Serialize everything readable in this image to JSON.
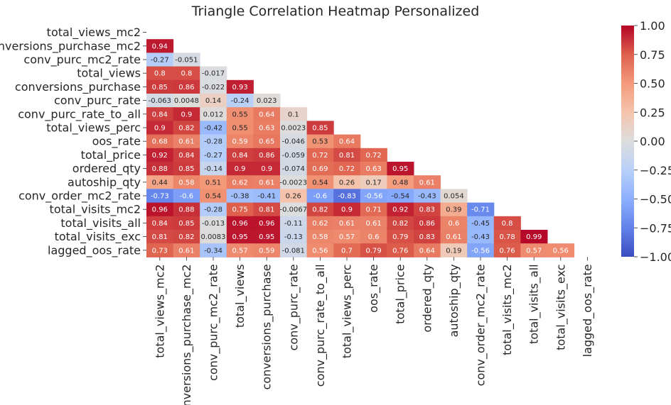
{
  "chart_data": {
    "type": "heatmap",
    "title": "Triangle Correlation Heatmap Personalized",
    "variables": [
      "total_views_mc2",
      "conversions_purchase_mc2",
      "conv_purc_mc2_rate",
      "total_views",
      "conversions_purchase",
      "conv_purc_rate",
      "conv_purc_rate_to_all",
      "total_views_perc",
      "oos_rate",
      "total_price",
      "ordered_qty",
      "autoship_qty",
      "conv_order_mc2_rate",
      "total_visits_mc2",
      "total_visits_all",
      "total_visits_exc",
      "lagged_oos_rate"
    ],
    "values": [
      [],
      [
        "0.94"
      ],
      [
        "-0.27",
        "-0.051"
      ],
      [
        "0.8",
        "0.8",
        "-0.017"
      ],
      [
        "0.85",
        "0.86",
        "-0.022",
        "0.93"
      ],
      [
        "-0.063",
        "0.0048",
        "0.14",
        "-0.24",
        "0.023"
      ],
      [
        "0.84",
        "0.9",
        "0.012",
        "0.55",
        "0.64",
        "0.1"
      ],
      [
        "0.9",
        "0.82",
        "-0.42",
        "0.55",
        "0.63",
        "0.0023",
        "0.85"
      ],
      [
        "0.68",
        "0.61",
        "-0.28",
        "0.59",
        "0.65",
        "-0.046",
        "0.53",
        "0.64"
      ],
      [
        "0.92",
        "0.84",
        "-0.27",
        "0.84",
        "0.86",
        "-0.059",
        "0.72",
        "0.81",
        "0.72"
      ],
      [
        "0.88",
        "0.85",
        "-0.14",
        "0.9",
        "0.9",
        "-0.074",
        "0.69",
        "0.72",
        "0.63",
        "0.95"
      ],
      [
        "0.44",
        "0.58",
        "0.51",
        "0.62",
        "0.61",
        "-0.0023",
        "0.54",
        "0.26",
        "0.17",
        "0.48",
        "0.61"
      ],
      [
        "-0.73",
        "-0.6",
        "0.54",
        "-0.38",
        "-0.41",
        "0.26",
        "-0.6",
        "-0.83",
        "-0.56",
        "-0.54",
        "-0.43",
        "0.054"
      ],
      [
        "0.96",
        "0.88",
        "-0.28",
        "0.75",
        "0.81",
        "-0.0067",
        "0.82",
        "0.9",
        "0.71",
        "0.92",
        "0.83",
        "0.39",
        "-0.71"
      ],
      [
        "0.84",
        "0.85",
        "-0.013",
        "0.96",
        "0.96",
        "-0.11",
        "0.62",
        "0.61",
        "0.61",
        "0.82",
        "0.86",
        "0.6",
        "-0.45",
        "0.8"
      ],
      [
        "0.81",
        "0.82",
        "0.0083",
        "0.95",
        "0.95",
        "-0.13",
        "0.58",
        "0.57",
        "0.6",
        "0.79",
        "0.83",
        "0.61",
        "-0.43",
        "0.78",
        "0.99"
      ],
      [
        "0.73",
        "0.61",
        "-0.34",
        "0.57",
        "0.59",
        "-0.081",
        "0.56",
        "0.7",
        "0.79",
        "0.76",
        "0.64",
        "0.19",
        "-0.56",
        "0.76",
        "0.57",
        "0.56"
      ]
    ],
    "colormap": "coolwarm",
    "vmin": -1.0,
    "vmax": 1.0,
    "colorbar_ticks": [
      "1.00",
      "0.75",
      "0.50",
      "0.25",
      "0.00",
      "−0.25",
      "−0.50",
      "−0.75",
      "−1.00"
    ],
    "colorbar_tick_values": [
      1.0,
      0.75,
      0.5,
      0.25,
      0.0,
      -0.25,
      -0.5,
      -0.75,
      -1.0
    ]
  }
}
